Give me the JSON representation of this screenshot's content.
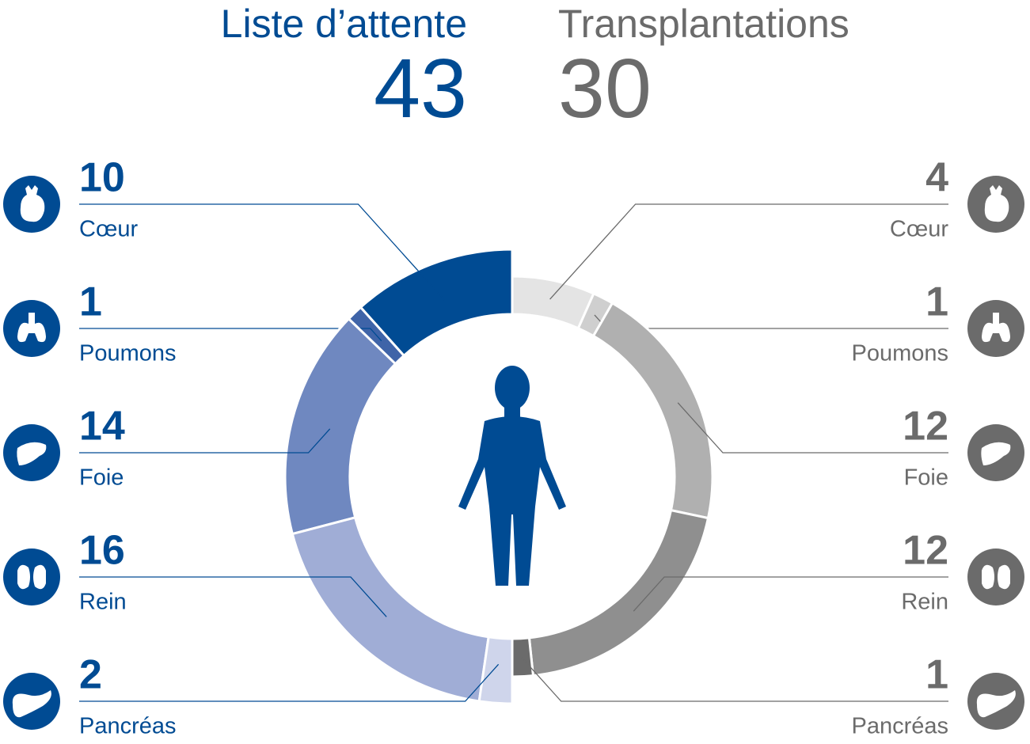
{
  "chart_data": {
    "type": "half-donut",
    "categories": [
      "Cœur",
      "Poumons",
      "Foie",
      "Rein",
      "Pancréas"
    ],
    "series": [
      {
        "name": "Liste d’attente",
        "total": 43,
        "color": "#004b93",
        "side": "left",
        "values": [
          10,
          1,
          14,
          16,
          2
        ],
        "colors": [
          "#004b93",
          "#3f64a8",
          "#6f88c0",
          "#a0add6",
          "#cfd5eb"
        ]
      },
      {
        "name": "Transplantations",
        "total": 30,
        "color": "#6b6b6b",
        "side": "right",
        "values": [
          4,
          1,
          12,
          12,
          1
        ],
        "colors": [
          "#e4e4e4",
          "#cfcfcf",
          "#b0b0b0",
          "#8f8f8f",
          "#6b6b6b"
        ]
      }
    ]
  }
}
